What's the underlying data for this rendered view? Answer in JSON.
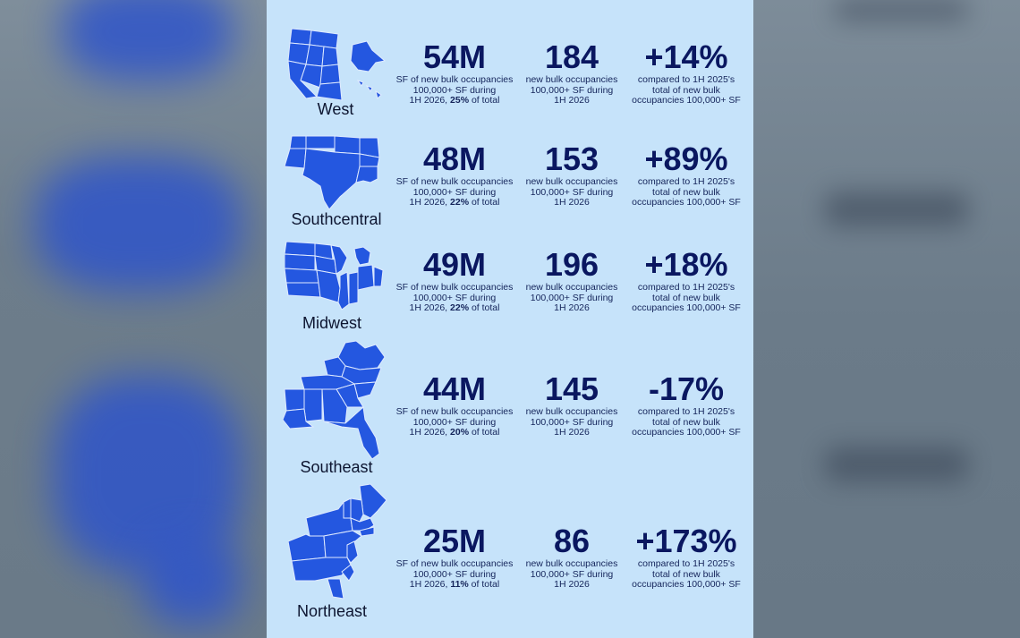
{
  "regions": [
    {
      "name": "West",
      "sf": "54M",
      "sf_line1": "SF of new bulk occupancies",
      "sf_line2": "100,000+ SF during",
      "sf_line3_pre": "1H 2026, ",
      "sf_pct": "25%",
      "sf_line3_post": " of total",
      "count": "184",
      "count_line1": "new bulk occupancies",
      "count_line2": "100,000+ SF during",
      "count_line3": "1H 2026",
      "change": "+14%",
      "change_line1": "compared to 1H 2025's",
      "change_line2": "total of new bulk",
      "change_line3": "occupancies 100,000+ SF"
    },
    {
      "name": "Southcentral",
      "sf": "48M",
      "sf_line1": "SF of new bulk occupancies",
      "sf_line2": "100,000+ SF during",
      "sf_line3_pre": "1H 2026, ",
      "sf_pct": "22%",
      "sf_line3_post": " of total",
      "count": "153",
      "count_line1": "new bulk occupancies",
      "count_line2": "100,000+ SF during",
      "count_line3": "1H 2026",
      "change": "+89%",
      "change_line1": "compared to 1H 2025's",
      "change_line2": "total of new bulk",
      "change_line3": "occupancies 100,000+ SF"
    },
    {
      "name": "Midwest",
      "sf": "49M",
      "sf_line1": "SF of new bulk occupancies",
      "sf_line2": "100,000+ SF during",
      "sf_line3_pre": "1H 2026, ",
      "sf_pct": "22%",
      "sf_line3_post": " of total",
      "count": "196",
      "count_line1": "new bulk occupancies",
      "count_line2": "100,000+ SF during",
      "count_line3": "1H 2026",
      "change": "+18%",
      "change_line1": "compared to 1H 2025's",
      "change_line2": "total of new bulk",
      "change_line3": "occupancies 100,000+ SF"
    },
    {
      "name": "Southeast",
      "sf": "44M",
      "sf_line1": "SF of new bulk occupancies",
      "sf_line2": "100,000+ SF during",
      "sf_line3_pre": "1H 2026, ",
      "sf_pct": "20%",
      "sf_line3_post": " of total",
      "count": "145",
      "count_line1": "new bulk occupancies",
      "count_line2": "100,000+ SF during",
      "count_line3": "1H 2026",
      "change": "-17%",
      "change_line1": "compared to 1H 2025's",
      "change_line2": "total of new bulk",
      "change_line3": "occupancies 100,000+ SF"
    },
    {
      "name": "Northeast",
      "sf": "25M",
      "sf_line1": "SF of new bulk occupancies",
      "sf_line2": "100,000+ SF during",
      "sf_line3_pre": "1H 2026, ",
      "sf_pct": "11%",
      "sf_line3_post": " of total",
      "count": "86",
      "count_line1": "new bulk occupancies",
      "count_line2": "100,000+ SF during",
      "count_line3": "1H 2026",
      "change": "+173%",
      "change_line1": "compared to 1H 2025's",
      "change_line2": "total of new bulk",
      "change_line3": "occupancies 100,000+ SF"
    }
  ],
  "icons": [
    "west-map-icon",
    "southcentral-map-icon",
    "midwest-map-icon",
    "southeast-map-icon",
    "northeast-map-icon"
  ],
  "colors": {
    "panel_bg": "#c6e3fa",
    "map_fill": "#2457e0",
    "map_stroke": "#dfeaff",
    "stat_text": "#0a1760"
  }
}
